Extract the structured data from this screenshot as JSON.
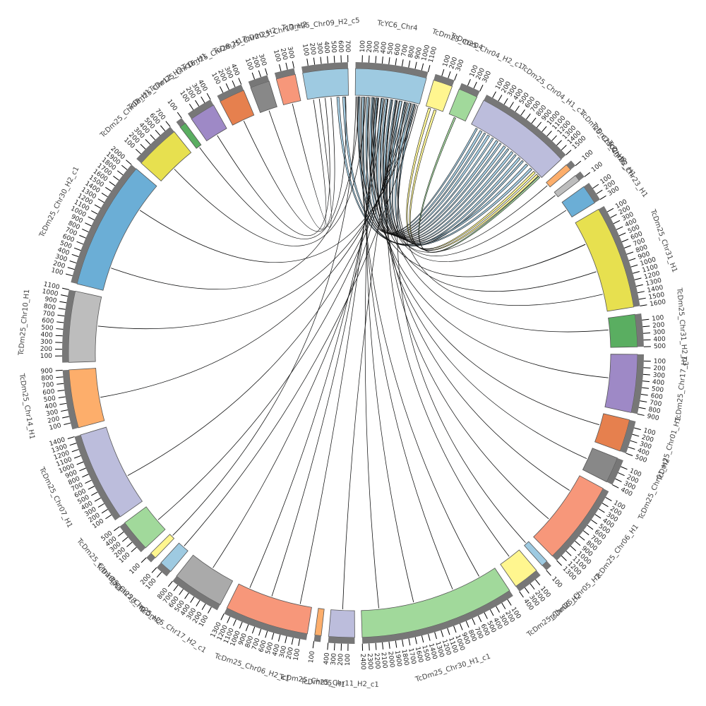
{
  "chart_data": {
    "type": "chord",
    "sectors": [
      {
        "name": "TcYC6_Chr4",
        "color": "#9ecae1",
        "length": 1100,
        "ticks": [
          100,
          200,
          300,
          400,
          500,
          600,
          700,
          800,
          900,
          1000,
          1100
        ]
      },
      {
        "name": "TcDm25_Chr04",
        "color": "#fff68f",
        "length": 300,
        "ticks": [
          100,
          200,
          300
        ]
      },
      {
        "name": "TcDm25_Chr04_H2_c1",
        "color": "#a1d99b",
        "length": 300,
        "ticks": [
          100,
          200,
          300
        ]
      },
      {
        "name": "TcDm25_Chr04_H1_c1",
        "color": "#bcbddc",
        "length": 1500,
        "ticks": [
          100,
          200,
          300,
          400,
          500,
          600,
          700,
          800,
          900,
          1000,
          1100,
          1200,
          1300,
          1400,
          1500
        ]
      },
      {
        "name": "TcDm25_Chr02_H2",
        "color": "#fdae6b",
        "length": 100,
        "ticks": [
          100
        ]
      },
      {
        "name": "TcDm25_Chr02_H1",
        "color": "#bdbdbd",
        "length": 100,
        "ticks": [
          100
        ]
      },
      {
        "name": "TcDm25_Chr23_H1",
        "color": "#6baed6",
        "length": 300,
        "ticks": [
          100,
          200,
          300
        ]
      },
      {
        "name": "TcDm25_Chr31_H1",
        "color": "#e7e04f",
        "length": 1600,
        "ticks": [
          100,
          200,
          300,
          400,
          500,
          600,
          700,
          800,
          900,
          1000,
          1100,
          1200,
          1300,
          1400,
          1500,
          1600
        ]
      },
      {
        "name": "TcDm25_Chr31_H2_c3",
        "color": "#5aae61",
        "length": 500,
        "ticks": [
          100,
          200,
          300,
          400,
          500
        ]
      },
      {
        "name": "TcDm25_Chr17_H1",
        "color": "#9e89c6",
        "length": 900,
        "ticks": [
          100,
          200,
          300,
          400,
          500,
          600,
          700,
          800,
          900
        ]
      },
      {
        "name": "TcDm25_Chr01_H1",
        "color": "#e6804e",
        "length": 500,
        "ticks": [
          100,
          200,
          300,
          400,
          500
        ]
      },
      {
        "name": "TcDm25_Chr01_H2",
        "color": "#888888",
        "length": 400,
        "ticks": [
          100,
          200,
          300,
          400
        ]
      },
      {
        "name": "TcDm25_Chr06_H1",
        "color": "#f7977a",
        "length": 1300,
        "ticks": [
          100,
          200,
          300,
          400,
          500,
          600,
          700,
          800,
          900,
          1000,
          1100,
          1200,
          1300
        ]
      },
      {
        "name": "TcDm25_Chr05_H2",
        "color": "#9ecae1",
        "length": 100,
        "ticks": [
          100
        ]
      },
      {
        "name": "TcDm25_Chr06_H2",
        "color": "#fff68f",
        "length": 400,
        "ticks": [
          100,
          200,
          300,
          400
        ]
      },
      {
        "name": "TcDm25_Chr30_H1_c1",
        "color": "#a1d99b",
        "length": 2400,
        "ticks": [
          100,
          200,
          300,
          400,
          500,
          600,
          700,
          800,
          900,
          1000,
          1100,
          1200,
          1300,
          1400,
          1500,
          1600,
          1700,
          1800,
          1900,
          2000,
          2100,
          2200,
          2300,
          2400
        ]
      },
      {
        "name": "TcDm25_Chr11_H2_c1",
        "color": "#bcbddc",
        "length": 400,
        "ticks": [
          100,
          200,
          300,
          400
        ]
      },
      {
        "name": "TcDm25_Chr05_H1",
        "color": "#fdae6b",
        "length": 100,
        "ticks": [
          100
        ]
      },
      {
        "name": "TcDm25_Chr06_H2_c1",
        "color": "#f7977a",
        "length": 1300,
        "ticks": [
          100,
          200,
          300,
          400,
          500,
          600,
          700,
          800,
          900,
          1000,
          1100,
          1200,
          1300
        ]
      },
      {
        "name": "TcDm25_Chr17_H2_c1",
        "color": "#aaaaaa",
        "length": 800,
        "ticks": [
          100,
          200,
          300,
          400,
          500,
          600,
          700,
          800
        ]
      },
      {
        "name": "TcDm25_Chr25_H2",
        "color": "#9ecae1",
        "length": 200,
        "ticks": [
          100,
          200
        ]
      },
      {
        "name": "TcDm25_Chr28_H2",
        "color": "#fff68f",
        "length": 100,
        "ticks": [
          100
        ]
      },
      {
        "name": "TcDm25_Chr18_H1",
        "color": "#a1d99b",
        "length": 500,
        "ticks": [
          100,
          200,
          300,
          400,
          500
        ]
      },
      {
        "name": "TcDm25_Chr07_H1",
        "color": "#bcbddc",
        "length": 1400,
        "ticks": [
          100,
          200,
          300,
          400,
          500,
          600,
          700,
          800,
          900,
          1000,
          1100,
          1200,
          1300,
          1400
        ]
      },
      {
        "name": "TcDm25_Chr14_H1",
        "color": "#fdae6b",
        "length": 900,
        "ticks": [
          100,
          200,
          300,
          400,
          500,
          600,
          700,
          800,
          900
        ]
      },
      {
        "name": "TcDm25_Chr10_H1",
        "color": "#bdbdbd",
        "length": 1100,
        "ticks": [
          100,
          200,
          300,
          400,
          500,
          600,
          700,
          800,
          900,
          1000,
          1100
        ]
      },
      {
        "name": "TcDm25_Chr30_H2_c1",
        "color": "#6baed6",
        "length": 2000,
        "ticks": [
          100,
          200,
          300,
          400,
          500,
          600,
          700,
          800,
          900,
          1000,
          1100,
          1200,
          1300,
          1400,
          1500,
          1600,
          1700,
          1800,
          1900,
          2000
        ]
      },
      {
        "name": "TcDm25_Chr08_H1",
        "color": "#e7e04f",
        "length": 700,
        "ticks": [
          100,
          200,
          300,
          400,
          500,
          600,
          700
        ]
      },
      {
        "name": "TcDm25_Chr12_H2",
        "color": "#5aae61",
        "length": 100,
        "ticks": [
          100
        ]
      },
      {
        "name": "TcDm25_Chr16_H1",
        "color": "#9e89c6",
        "length": 400,
        "ticks": [
          100,
          200,
          300,
          400
        ]
      },
      {
        "name": "TcDm25_Chr28_H1",
        "color": "#e6804e",
        "length": 400,
        "ticks": [
          100,
          200,
          300,
          400
        ]
      },
      {
        "name": "TcDm25_Chr20_H2",
        "color": "#888888",
        "length": 300,
        "ticks": [
          100,
          200,
          300
        ]
      },
      {
        "name": "TcDm25_Chr13_H2",
        "color": "#f7977a",
        "length": 300,
        "ticks": [
          100,
          200,
          300
        ]
      },
      {
        "name": "TcDm25_Chr09_H2_c5",
        "color": "#9ecae1",
        "length": 700,
        "ticks": [
          100,
          200,
          300,
          400,
          500,
          600,
          700
        ]
      }
    ],
    "links": [
      [
        0,
        50,
        3,
        100,
        30
      ],
      [
        0,
        120,
        3,
        180,
        40
      ],
      [
        0,
        200,
        3,
        260,
        30
      ],
      [
        0,
        280,
        3,
        330,
        40
      ],
      [
        0,
        360,
        3,
        420,
        30
      ],
      [
        0,
        440,
        3,
        500,
        40
      ],
      [
        0,
        520,
        3,
        580,
        30
      ],
      [
        0,
        600,
        3,
        660,
        40
      ],
      [
        0,
        680,
        3,
        740,
        30
      ],
      [
        0,
        760,
        3,
        820,
        40
      ],
      [
        0,
        840,
        3,
        900,
        30
      ],
      [
        0,
        920,
        3,
        980,
        40
      ],
      [
        0,
        1000,
        3,
        1060,
        30
      ],
      [
        33,
        500,
        3,
        1150,
        40
      ],
      [
        33,
        600,
        3,
        1250,
        40
      ],
      [
        1,
        50,
        3,
        1330,
        40
      ],
      [
        1,
        150,
        3,
        1400,
        40
      ],
      [
        2,
        100,
        3,
        1450,
        30
      ],
      [
        0,
        30,
        7,
        400,
        5
      ],
      [
        0,
        300,
        7,
        900,
        5
      ],
      [
        0,
        100,
        15,
        300,
        3
      ],
      [
        0,
        150,
        15,
        800,
        3
      ],
      [
        0,
        250,
        15,
        1500,
        3
      ],
      [
        0,
        350,
        15,
        2100,
        3
      ],
      [
        0,
        400,
        18,
        200,
        3
      ],
      [
        0,
        450,
        18,
        700,
        3
      ],
      [
        0,
        500,
        18,
        1100,
        3
      ],
      [
        0,
        550,
        12,
        300,
        3
      ],
      [
        0,
        620,
        12,
        900,
        3
      ],
      [
        0,
        700,
        14,
        200,
        3
      ],
      [
        0,
        750,
        16,
        200,
        3
      ],
      [
        0,
        800,
        19,
        400,
        3
      ],
      [
        0,
        850,
        22,
        200,
        3
      ],
      [
        0,
        900,
        23,
        500,
        3
      ],
      [
        0,
        950,
        24,
        400,
        3
      ],
      [
        0,
        1020,
        25,
        600,
        3
      ],
      [
        0,
        1050,
        26,
        1500,
        3
      ],
      [
        0,
        60,
        26,
        400,
        3
      ],
      [
        0,
        180,
        27,
        300,
        3
      ],
      [
        0,
        230,
        9,
        400,
        3
      ],
      [
        0,
        330,
        10,
        200,
        3
      ],
      [
        0,
        380,
        11,
        200,
        3
      ],
      [
        0,
        480,
        8,
        200,
        3
      ],
      [
        0,
        560,
        6,
        150,
        3
      ],
      [
        0,
        640,
        4,
        50,
        3
      ],
      [
        0,
        720,
        5,
        50,
        3
      ],
      [
        0,
        880,
        7,
        1300,
        3
      ],
      [
        0,
        980,
        13,
        50,
        3
      ],
      [
        0,
        1080,
        20,
        100,
        3
      ],
      [
        0,
        10,
        21,
        50,
        3
      ],
      [
        33,
        300,
        29,
        200,
        3
      ],
      [
        33,
        100,
        31,
        150,
        3
      ],
      [
        33,
        200,
        32,
        150,
        3
      ],
      [
        33,
        400,
        30,
        200,
        3
      ],
      [
        33,
        650,
        28,
        50,
        3
      ]
    ]
  }
}
